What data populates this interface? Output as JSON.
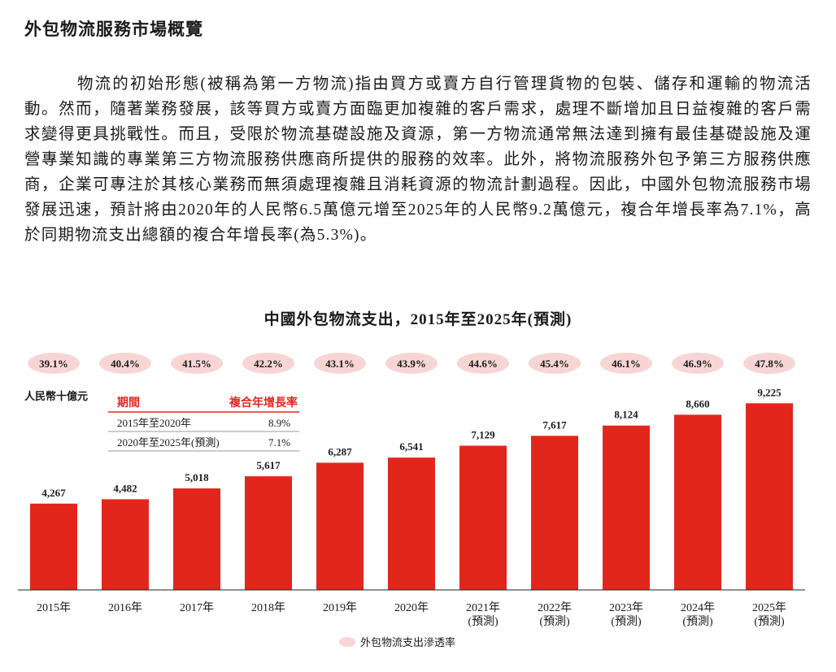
{
  "heading": "外包物流服務市場概覽",
  "paragraph": "物流的初始形態(被稱為第一方物流)指由買方或賣方自行管理貨物的包裝、儲存和運輸的物流活動。然而，隨著業務發展，該等買方或賣方面臨更加複雜的客戶需求，處理不斷增加且日益複雜的客戶需求變得更具挑戰性。而且，受限於物流基礎設施及資源，第一方物流通常無法達到擁有最佳基礎設施及運營專業知識的專業第三方物流服務供應商所提供的服務的效率。此外，將物流服務外包予第三方服務供應商，企業可專注於其核心業務而無須處理複雜且消耗資源的物流計劃過程。因此，中國外包物流服務市場發展迅速，預計將由2020年的人民幣6.5萬億元增至2025年的人民幣9.2萬億元，複合年增長率為7.1%，高於同期物流支出總額的複合年增長率(為5.3%)。",
  "colors": {
    "bar": "#e3261c",
    "pill": "#f8d5d5",
    "header": "#e3261c",
    "axis": "#222222"
  },
  "chart_data": {
    "type": "bar",
    "title": "中國外包物流支出，2015年至2025年(預測)",
    "ylabel": "人民幣十億元",
    "categories": [
      [
        "2015年"
      ],
      [
        "2016年"
      ],
      [
        "2017年"
      ],
      [
        "2018年"
      ],
      [
        "2019年"
      ],
      [
        "2020年"
      ],
      [
        "2021年",
        "(預測)"
      ],
      [
        "2022年",
        "(預測)"
      ],
      [
        "2023年",
        "(預測)"
      ],
      [
        "2024年",
        "(預測)"
      ],
      [
        "2025年",
        "(預測)"
      ]
    ],
    "values": [
      4267,
      4482,
      5018,
      5617,
      6287,
      6541,
      7129,
      7617,
      8124,
      8660,
      9225
    ],
    "value_labels": [
      "4,267",
      "4,482",
      "5,018",
      "5,617",
      "6,287",
      "6,541",
      "7,129",
      "7,617",
      "8,124",
      "8,660",
      "9,225"
    ],
    "penetration_rate": [
      "39.1%",
      "40.4%",
      "41.5%",
      "42.2%",
      "43.1%",
      "43.9%",
      "44.6%",
      "45.4%",
      "46.1%",
      "46.9%",
      "47.8%"
    ],
    "ylim": [
      0,
      9800
    ],
    "legend": {
      "label": "外包物流支出滲透率",
      "placement": "bottom-center"
    },
    "cagr_table": {
      "headers": [
        "期間",
        "複合年增長率"
      ],
      "rows": [
        [
          "2015年至2020年",
          "8.9%"
        ],
        [
          "2020年至2025年(預測)",
          "7.1%"
        ]
      ]
    }
  }
}
